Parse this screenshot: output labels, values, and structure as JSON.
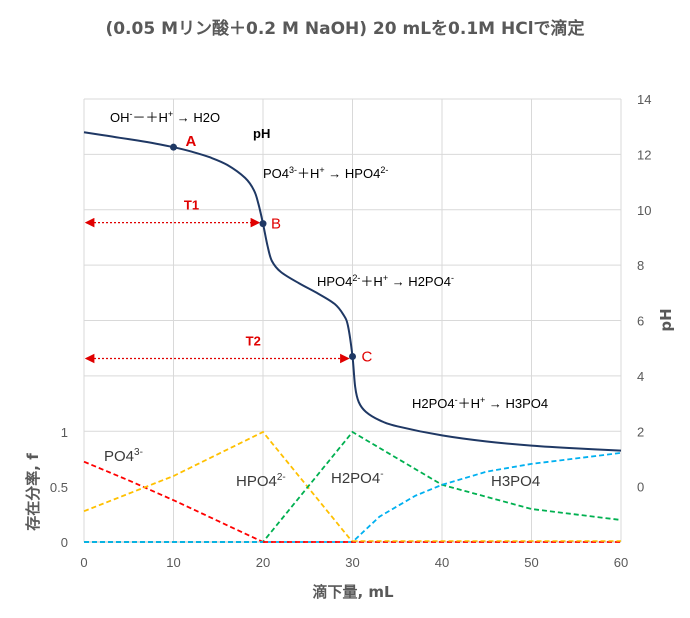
{
  "chart_data": {
    "type": "line",
    "title": "(0.05 Mリン酸＋0.2 M NaOH) 20 mLを0.1M HClで滴定",
    "xlabel": "滴下量, mL",
    "ylabel_left": "存在分率, f",
    "ylabel_right": "pH",
    "xlim": [
      0,
      60
    ],
    "x_ticks": [
      "0",
      "10",
      "20",
      "30",
      "40",
      "50",
      "60"
    ],
    "y_left_ticks": [
      "0",
      "0.5",
      "1"
    ],
    "y_right_ticks": [
      "0",
      "2",
      "4",
      "6",
      "8",
      "10",
      "12",
      "14"
    ],
    "ph_curve": {
      "name": "pH",
      "color": "#1f3864",
      "points": [
        [
          0,
          12.8
        ],
        [
          2,
          12.7
        ],
        [
          4,
          12.6
        ],
        [
          6,
          12.5
        ],
        [
          8,
          12.39
        ],
        [
          10,
          12.26
        ],
        [
          12,
          12.1
        ],
        [
          14,
          11.9
        ],
        [
          16,
          11.62
        ],
        [
          18,
          11.15
        ],
        [
          19,
          10.7
        ],
        [
          19.5,
          10.2
        ],
        [
          20,
          9.5
        ],
        [
          20.5,
          8.7
        ],
        [
          21,
          8.15
        ],
        [
          22,
          7.75
        ],
        [
          24,
          7.35
        ],
        [
          26,
          7.0
        ],
        [
          28,
          6.6
        ],
        [
          29,
          6.2
        ],
        [
          29.5,
          5.8
        ],
        [
          30,
          4.7
        ],
        [
          30.3,
          3.6
        ],
        [
          30.7,
          3.05
        ],
        [
          31.5,
          2.7
        ],
        [
          33,
          2.4
        ],
        [
          35,
          2.18
        ],
        [
          40,
          1.85
        ],
        [
          45,
          1.63
        ],
        [
          50,
          1.48
        ],
        [
          55,
          1.38
        ],
        [
          60,
          1.3
        ]
      ]
    },
    "species": [
      {
        "name": "PO4³⁻",
        "color": "#ff0000",
        "points": [
          [
            0,
            0.73
          ],
          [
            5,
            0.56
          ],
          [
            10,
            0.38
          ],
          [
            15,
            0.19
          ],
          [
            20,
            0
          ]
        ]
      },
      {
        "name": "HPO4²⁻",
        "color": "#ffc000",
        "points": [
          [
            0,
            0.28
          ],
          [
            10,
            0.6
          ],
          [
            20,
            1.0
          ],
          [
            30,
            0
          ]
        ]
      },
      {
        "name": "H2PO4⁻",
        "color": "#00b050",
        "points": [
          [
            0,
            0
          ],
          [
            20,
            0
          ],
          [
            30,
            1.0
          ],
          [
            40,
            0.52
          ],
          [
            50,
            0.3
          ],
          [
            60,
            0.2
          ]
        ]
      },
      {
        "name": "H3PO4",
        "color": "#00b0f0",
        "points": [
          [
            0,
            0
          ],
          [
            30,
            0
          ],
          [
            33,
            0.23
          ],
          [
            37,
            0.42
          ],
          [
            40,
            0.52
          ],
          [
            45,
            0.64
          ],
          [
            50,
            0.71
          ],
          [
            55,
            0.76
          ],
          [
            60,
            0.81
          ]
        ]
      }
    ],
    "points": [
      {
        "label": "A",
        "x": 10,
        "ph": 12.26
      },
      {
        "label": "B",
        "x": 20,
        "ph": 9.5
      },
      {
        "label": "C",
        "x": 30,
        "ph": 4.7
      }
    ],
    "intervals": [
      {
        "label": "T1",
        "x_from": 0,
        "x_to": 20,
        "ph": 9.5
      },
      {
        "label": "T2",
        "x_from": 0,
        "x_to": 30,
        "ph": 4.7
      }
    ],
    "annotations": {
      "pH_label": "pH",
      "reaction1_a": "OH",
      "reaction1_b": "－＋H",
      "reaction1_c": " → H2O",
      "reaction2_a": "PO4",
      "reaction2_b": "3-",
      "reaction2_c": "＋H",
      "reaction2_d": " → HPO4",
      "reaction2_e": "2-",
      "reaction3_a": "HPO4",
      "reaction3_b": "2-",
      "reaction3_c": "＋H",
      "reaction3_d": " → H2PO4",
      "reaction3_e": "-",
      "reaction4_a": "H2PO4",
      "reaction4_b": "-",
      "reaction4_c": "＋H",
      "reaction4_d": " → H3PO4",
      "sup_minus": "-",
      "sup_plus": "+",
      "sp1_a": "PO4",
      "sp1_b": "3-",
      "sp2_a": "HPO4",
      "sp2_b": "2-",
      "sp3_a": "H2PO4",
      "sp3_b": "-",
      "sp4": "H3PO4"
    }
  }
}
